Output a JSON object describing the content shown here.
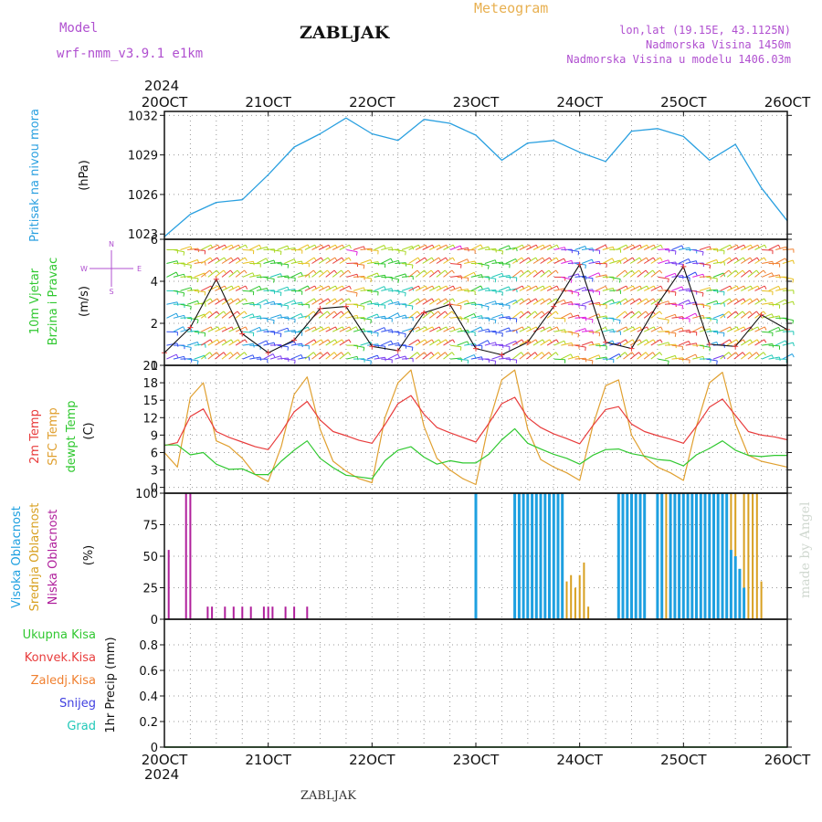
{
  "header": {
    "model_label": "Model",
    "model_name": "wrf-nmm_v3.9.1 e1km",
    "title": "Meteogram",
    "station": "ZABLJAK",
    "lonlat": "lon,lat (19.15E, 43.1125N)",
    "altitude": "Nadmorska Visina 1450m",
    "model_altitude": "Nadmorska Visina u modelu 1406.03m",
    "footer_station": "ZABLJAK",
    "credit": "made by Angel",
    "year_top": "2024",
    "year_bottom": "2024"
  },
  "colors": {
    "pressure": "#2aa0e0",
    "temp2m": "#e83c3c",
    "sfc_temp": "#e0a030",
    "dewpt": "#30c830",
    "high_cloud": "#1ea0e0",
    "mid_cloud": "#d8a020",
    "low_cloud": "#b0209c",
    "model": "#b050d0",
    "meteogram": "#e8b050"
  },
  "chart_data": [
    {
      "type": "line",
      "panel": "pressure",
      "ylabel": [
        "Pritisak na nivou mora",
        "(hPa)"
      ],
      "ylim": [
        1022.6,
        1032.3
      ],
      "yticks": [
        1023,
        1026,
        1029,
        1032
      ],
      "grid": true,
      "x_categories": [
        "20OCT",
        "21OCT",
        "22OCT",
        "23OCT",
        "24OCT",
        "25OCT",
        "26OCT"
      ],
      "x_hours": [
        0,
        6,
        12,
        18,
        24,
        30,
        36,
        42,
        48,
        54,
        60,
        66,
        72,
        78,
        84,
        90,
        96,
        102,
        108,
        114,
        120,
        126,
        132,
        138,
        144
      ],
      "series": [
        {
          "name": "Pritisak na nivou mora",
          "values": [
            1022.8,
            1024.5,
            1025.4,
            1025.6,
            1027.5,
            1029.6,
            1030.6,
            1031.8,
            1030.6,
            1030.1,
            1031.7,
            1031.4,
            1030.5,
            1028.6,
            1029.9,
            1030.1,
            1029.2,
            1028.5,
            1030.8,
            1031.0,
            1030.4,
            1028.6,
            1029.8,
            1026.5,
            1024.0
          ]
        }
      ]
    },
    {
      "type": "line",
      "panel": "wind",
      "ylabel": [
        "10m Vjetar",
        "Brzina i Pravac",
        "(m/s)"
      ],
      "compass": [
        "N",
        "W",
        "E",
        "S"
      ],
      "ylim": [
        0,
        6
      ],
      "yticks": [
        0,
        2,
        4,
        6
      ],
      "grid": true,
      "x_hours": [
        0,
        6,
        12,
        18,
        24,
        30,
        36,
        42,
        48,
        54,
        60,
        66,
        72,
        78,
        84,
        90,
        96,
        102,
        108,
        114,
        120,
        126,
        132,
        138,
        144
      ],
      "series": [
        {
          "name": "10m Vjetar",
          "values": [
            0.6,
            1.8,
            4.1,
            1.5,
            0.6,
            1.2,
            2.7,
            2.8,
            0.9,
            0.7,
            2.5,
            2.9,
            0.8,
            0.5,
            1.1,
            2.8,
            4.8,
            1.1,
            0.8,
            2.9,
            4.7,
            1.0,
            0.9,
            2.4,
            1.7
          ]
        }
      ]
    },
    {
      "type": "line",
      "panel": "temperature",
      "ylabel": [
        "2m Temp",
        "SFC Temp",
        "dewpt Temp",
        "(C)"
      ],
      "ylim": [
        -1,
        21
      ],
      "yticks": [
        0,
        3,
        6,
        9,
        12,
        15,
        18,
        21
      ],
      "grid": true,
      "x_hours": [
        0,
        3,
        6,
        9,
        12,
        15,
        18,
        21,
        24,
        27,
        30,
        33,
        36,
        39,
        42,
        45,
        48,
        51,
        54,
        57,
        60,
        63,
        66,
        69,
        72,
        75,
        78,
        81,
        84,
        87,
        90,
        93,
        96,
        99,
        102,
        105,
        108,
        111,
        114,
        117,
        120,
        123,
        126,
        129,
        132,
        135,
        138,
        141,
        144
      ],
      "series": [
        {
          "name": "2m Temp",
          "values": [
            7.2,
            7.7,
            12.2,
            13.5,
            9.6,
            8.6,
            7.8,
            7.0,
            6.5,
            9.5,
            13.0,
            14.8,
            11.6,
            9.6,
            8.9,
            8.1,
            7.6,
            10.8,
            14.4,
            15.8,
            12.6,
            10.3,
            9.4,
            8.6,
            7.8,
            11.0,
            14.4,
            15.5,
            12.0,
            10.3,
            9.2,
            8.4,
            7.5,
            10.6,
            13.4,
            13.9,
            10.9,
            9.6,
            8.9,
            8.3,
            7.6,
            10.5,
            13.8,
            15.2,
            12.4,
            9.6,
            9.0,
            8.7,
            8.2
          ]
        },
        {
          "name": "SFC Temp",
          "values": [
            6.0,
            3.5,
            15.5,
            18.0,
            8.0,
            7.0,
            5.0,
            2.2,
            1.0,
            7.0,
            16.0,
            19.0,
            10.0,
            4.5,
            2.8,
            1.5,
            0.8,
            12.0,
            18.0,
            20.2,
            10.5,
            5.0,
            3.0,
            1.5,
            0.5,
            11.0,
            18.5,
            20.2,
            10.0,
            4.8,
            3.5,
            2.5,
            1.2,
            10.5,
            17.5,
            18.5,
            9.0,
            5.2,
            3.5,
            2.5,
            1.2,
            10.5,
            18.0,
            19.8,
            11.0,
            5.5,
            4.5,
            4.0,
            3.5
          ]
        },
        {
          "name": "dewpt Temp",
          "values": [
            7.3,
            7.3,
            5.6,
            6.0,
            4.0,
            3.1,
            3.2,
            2.2,
            2.2,
            4.5,
            6.4,
            8.0,
            5.0,
            3.4,
            2.1,
            1.8,
            1.5,
            4.6,
            6.4,
            7.0,
            5.2,
            4.0,
            4.6,
            4.2,
            4.2,
            5.7,
            8.2,
            10.1,
            7.6,
            6.6,
            5.7,
            5.0,
            4.0,
            5.5,
            6.5,
            6.6,
            5.8,
            5.4,
            4.8,
            4.6,
            3.7,
            5.6,
            6.7,
            8.0,
            6.4,
            5.5,
            5.3,
            5.5,
            5.5
          ]
        }
      ]
    },
    {
      "type": "bar",
      "panel": "cloud",
      "ylabel": [
        "Visoka Oblacnost",
        "Srednja Oblacnost",
        "Niska Oblacnost",
        "(%)"
      ],
      "ylim": [
        0,
        100
      ],
      "yticks": [
        0,
        25,
        50,
        75,
        100
      ],
      "grid": true,
      "series": [
        {
          "name": "Visoka Oblacnost",
          "hours": [
            72,
            81,
            82,
            83,
            84,
            85,
            86,
            87,
            88,
            89,
            90,
            91,
            92,
            105,
            106,
            107,
            108,
            109,
            110,
            111,
            114,
            115,
            117,
            118,
            119,
            120,
            121,
            122,
            123,
            124,
            125,
            126,
            127,
            128,
            129,
            130,
            131,
            132,
            133,
            134
          ],
          "values": [
            100,
            100,
            100,
            100,
            100,
            100,
            100,
            100,
            100,
            100,
            100,
            100,
            100,
            100,
            100,
            100,
            100,
            100,
            100,
            100,
            100,
            100,
            100,
            100,
            100,
            100,
            100,
            100,
            100,
            100,
            100,
            100,
            100,
            100,
            100,
            100,
            55,
            50,
            40,
            25
          ]
        },
        {
          "name": "Srednja Oblacnost",
          "hours": [
            91,
            92,
            93,
            94,
            95,
            96,
            97,
            98,
            106,
            107,
            108,
            115,
            116,
            117,
            118,
            119,
            120,
            121,
            122,
            123,
            124,
            125,
            126,
            127,
            128,
            129,
            130,
            131,
            132,
            133,
            134,
            135,
            136,
            137,
            138
          ],
          "values": [
            65,
            10,
            30,
            35,
            25,
            35,
            45,
            10,
            25,
            50,
            40,
            65,
            100,
            100,
            100,
            100,
            100,
            100,
            100,
            100,
            100,
            100,
            100,
            100,
            100,
            100,
            100,
            100,
            100,
            20,
            100,
            100,
            100,
            100,
            30
          ]
        },
        {
          "name": "Niska Oblacnost",
          "hours": [
            1,
            5,
            6,
            10,
            11,
            14,
            16,
            18,
            20,
            23,
            24,
            25,
            28,
            30,
            33
          ],
          "values": [
            55,
            100,
            100,
            10,
            10,
            10,
            10,
            10,
            10,
            10,
            10,
            10,
            10,
            10,
            10
          ]
        }
      ]
    },
    {
      "type": "line",
      "panel": "precip",
      "ylabel": [
        "1hr Precip (mm)"
      ],
      "legend": [
        "Ukupna Kisa",
        "Konvek.Kisa",
        "Zaledj.Kisa",
        "Snijeg",
        "Grad"
      ],
      "legend_colors": [
        "#30c830",
        "#e83c3c",
        "#f08030",
        "#4040e0",
        "#20c8b8"
      ],
      "ylim": [
        0,
        1.0
      ],
      "yticks": [
        0,
        0.2,
        0.4,
        0.6,
        0.8
      ],
      "grid": true,
      "series": [
        {
          "name": "Ukupna Kisa",
          "values": [
            0,
            0,
            0,
            0,
            0,
            0,
            0
          ]
        }
      ]
    }
  ]
}
